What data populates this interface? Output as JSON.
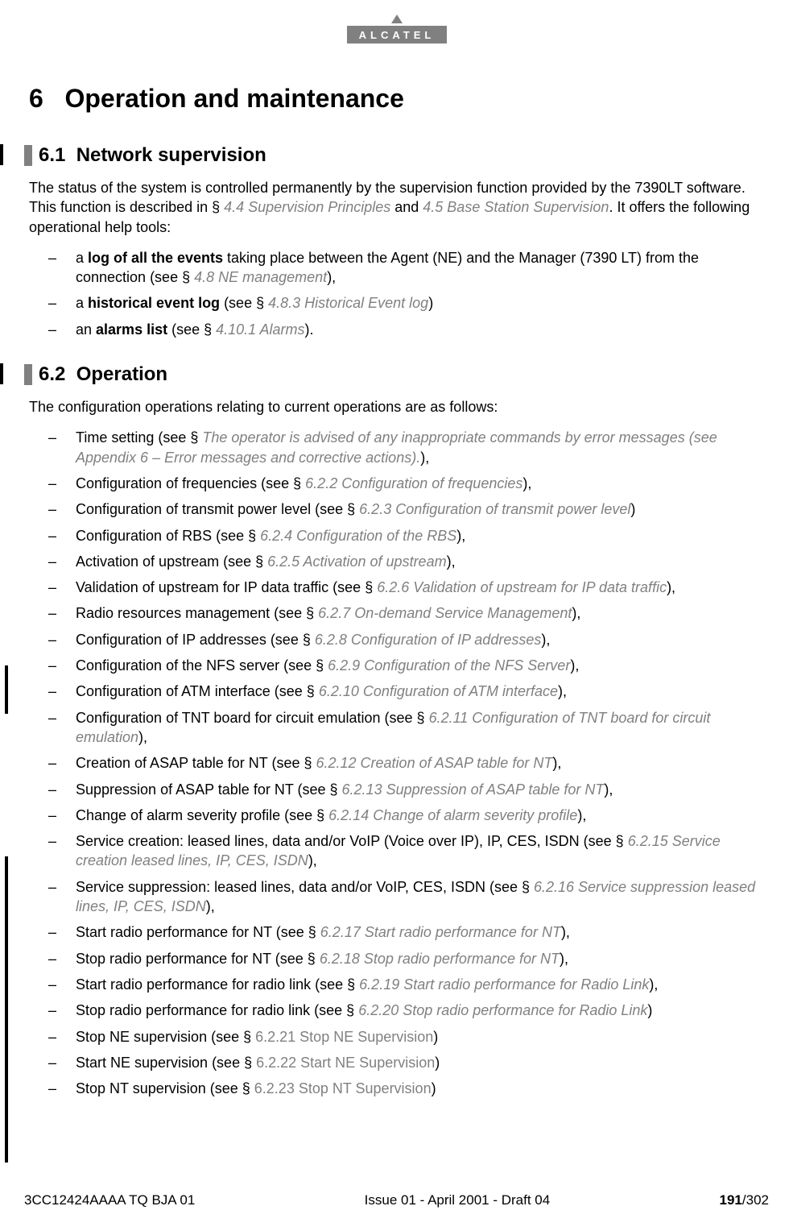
{
  "brand": "ALCATEL",
  "chapter": {
    "number": "6",
    "title": "Operation and maintenance"
  },
  "section_6_1": {
    "number": "6.1",
    "title": "Network supervision",
    "intro_a": "The status of the system is controlled permanently by the supervision function provided by the 7390LT software. This function is described in § ",
    "link1": "4.4 Supervision Principles",
    "intro_b": " and ",
    "link2": "4.5 Base Station Supervision",
    "intro_c": ". It offers the following operational help tools:",
    "items": [
      {
        "pre": "a ",
        "bold": "log of all the events",
        "mid": " taking place between the Agent (NE) and the Manager (7390 LT) from the connection (see § ",
        "link": "4.8 NE management",
        "post": "),"
      },
      {
        "pre": "a ",
        "bold": "historical event log",
        "mid": " (see § ",
        "link": "4.8.3 Historical Event log",
        "post": ")"
      },
      {
        "pre": "an ",
        "bold": "alarms list",
        "mid": " (see § ",
        "link": "4.10.1 Alarms",
        "post": ")."
      }
    ]
  },
  "section_6_2": {
    "number": "6.2",
    "title": "Operation",
    "intro": "The configuration operations relating to current operations are as follows:",
    "items": [
      {
        "pre": "Time setting (see §  ",
        "link": "The operator is advised of any inappropriate commands by error messages (see Appendix 6 – Error messages and corrective actions).",
        "post": "),"
      },
      {
        "pre": "Configuration of frequencies (see § ",
        "link": "6.2.2 Configuration of frequencies",
        "post": "),"
      },
      {
        "pre": "Configuration of transmit power level (see § ",
        "link": "6.2.3 Configuration of transmit power level",
        "post": ")"
      },
      {
        "pre": "Configuration of RBS (see § ",
        "link": "6.2.4 Configuration of the RBS",
        "post": "),"
      },
      {
        "pre": "Activation of upstream (see § ",
        "link": "6.2.5 Activation of upstream",
        "post": "),"
      },
      {
        "pre": "Validation of upstream for IP data traffic (see § ",
        "link": "6.2.6 Validation of upstream for IP data traffic",
        "post": "),"
      },
      {
        "pre": "Radio resources management (see § ",
        "link": "6.2.7 On-demand Service Management",
        "post": "),"
      },
      {
        "pre": "Configuration of IP addresses (see § ",
        "link": "6.2.8 Configuration of IP addresses",
        "post": "),"
      },
      {
        "pre": "Configuration of the NFS server (see § ",
        "link": " 6.2.9 Configuration of the NFS Server",
        "post": "),"
      },
      {
        "pre": "Configuration of ATM interface (see § ",
        "link": "6.2.10 Configuration of ATM interface",
        "post": "),"
      },
      {
        "pre": "Configuration of TNT board for circuit emulation (see § ",
        "link": "6.2.11 Configuration of TNT board for circuit emulation",
        "post": "),"
      },
      {
        "pre": "Creation of ASAP table for NT (see § ",
        "link": "6.2.12 Creation of ASAP table for NT",
        "post": "),"
      },
      {
        "pre": "Suppression of ASAP table for NT (see § ",
        "link": "6.2.13 Suppression of ASAP table for NT",
        "post": "),"
      },
      {
        "pre": "Change of alarm severity profile (see § ",
        "link": "6.2.14 Change of alarm severity profile",
        "post": "),"
      },
      {
        "pre": "Service creation: leased lines, data and/or VoIP (Voice over IP), IP, CES, ISDN (see § ",
        "link": "6.2.15 Service creation leased lines, IP, CES, ISDN",
        "post": "),"
      },
      {
        "pre": "Service suppression: leased lines, data and/or VoIP, CES, ISDN (see § ",
        "link": "6.2.16 Service suppression leased lines, IP, CES, ISDN",
        "post": "),"
      },
      {
        "pre": "Start radio performance for NT (see §  ",
        "link": "6.2.17 Start radio performance for NT",
        "post": "),"
      },
      {
        "pre": "Stop radio performance for NT (see § ",
        "link": "6.2.18 Stop radio performance for NT",
        "post": "),"
      },
      {
        "pre": "Start radio performance for radio link (see § ",
        "link": "6.2.19 Start radio performance for Radio Link",
        "post": "),"
      },
      {
        "pre": "Stop radio performance for radio link (see § ",
        "link": "6.2.20 Stop radio performance for Radio Link",
        "post": ")"
      },
      {
        "pre": "Stop NE supervision (see § ",
        "linkplain": "6.2.21 Stop NE Supervision",
        "post": ")"
      },
      {
        "pre": "Start NE supervision (see § ",
        "linkplain": "6.2.22 Start NE Supervision",
        "post": ")"
      },
      {
        "pre": "Stop NT supervision (see § ",
        "linkplain": "6.2.23 Stop NT Supervision",
        "post": ")"
      }
    ]
  },
  "footer": {
    "left": "3CC12424AAAA TQ BJA 01",
    "center": "Issue 01 - April 2001 - Draft 04",
    "page": "191",
    "total": "/302"
  },
  "colors": {
    "text": "#000000",
    "link_gray": "#808080",
    "bar_gray": "#808080",
    "bg": "#ffffff"
  },
  "fonts": {
    "body_size": 18,
    "chapter_size": 32,
    "section_size": 24
  }
}
